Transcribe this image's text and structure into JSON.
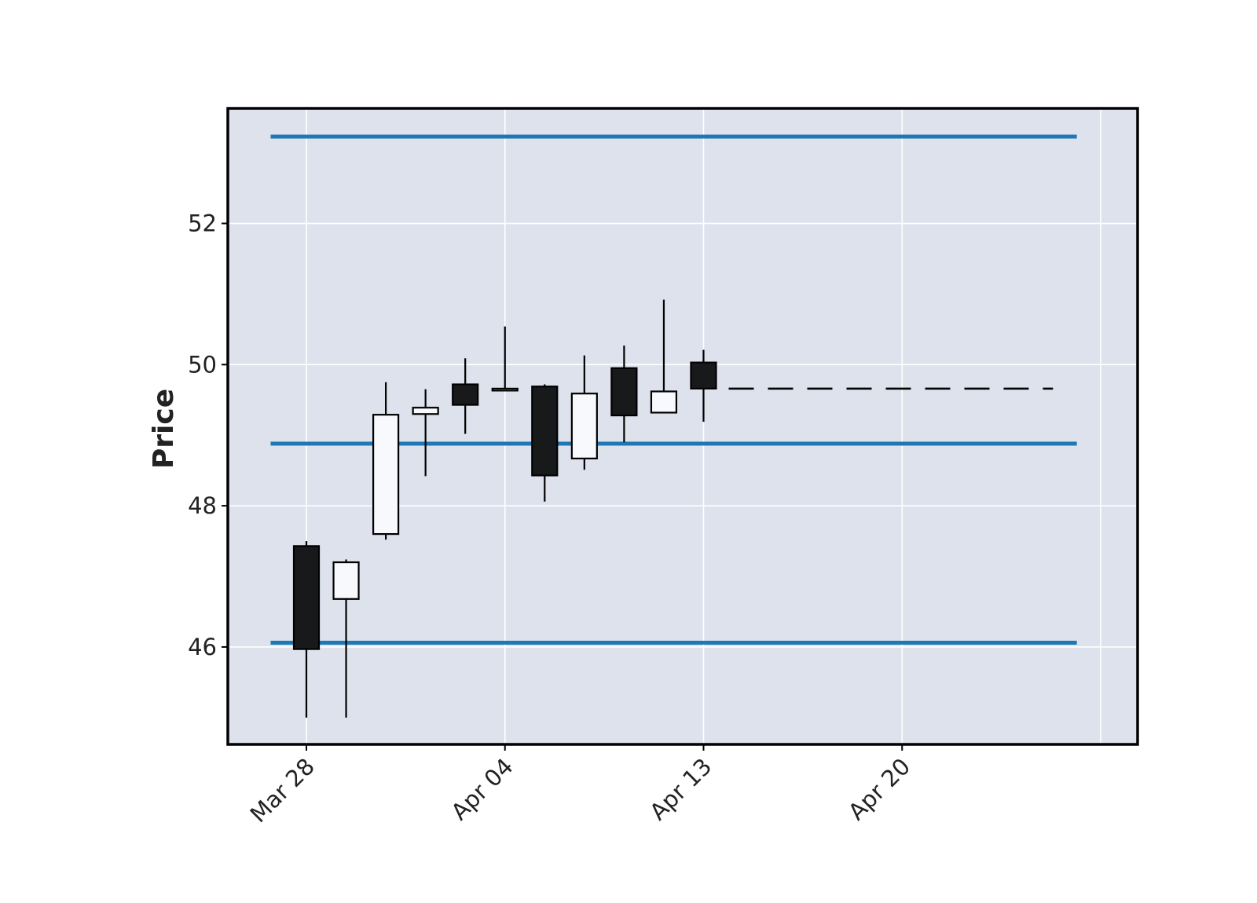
{
  "chart_data": {
    "type": "candlestick",
    "title": "",
    "xlabel": "",
    "ylabel": "Price",
    "ylim": [
      44.62,
      53.63
    ],
    "grid": true,
    "x_tick_labels": [
      "Mar 28",
      "Apr 04",
      "Apr 13",
      "Apr 20"
    ],
    "y_ticks": [
      46,
      48,
      50,
      52
    ],
    "candles": [
      {
        "open": 47.43,
        "high": 47.5,
        "low": 45.0,
        "close": 45.97
      },
      {
        "open": 46.68,
        "high": 47.24,
        "low": 45.0,
        "close": 47.2
      },
      {
        "open": 47.6,
        "high": 49.75,
        "low": 47.52,
        "close": 49.29
      },
      {
        "open": 49.3,
        "high": 49.65,
        "low": 48.42,
        "close": 49.39
      },
      {
        "open": 49.72,
        "high": 50.09,
        "low": 49.02,
        "close": 49.43
      },
      {
        "open": 49.66,
        "high": 50.54,
        "low": 49.66,
        "close": 49.66
      },
      {
        "open": 49.69,
        "high": 49.72,
        "low": 48.06,
        "close": 48.43
      },
      {
        "open": 48.67,
        "high": 50.13,
        "low": 48.51,
        "close": 49.59
      },
      {
        "open": 49.95,
        "high": 50.27,
        "low": 48.9,
        "close": 49.28
      },
      {
        "open": 49.32,
        "high": 50.92,
        "low": 49.32,
        "close": 49.62
      },
      {
        "open": 50.03,
        "high": 50.21,
        "low": 49.19,
        "close": 49.66
      }
    ],
    "horizontal_lines": [
      {
        "value": 53.23,
        "color": "#1f77b4"
      },
      {
        "value": 48.88,
        "color": "#1f77b4"
      },
      {
        "value": 46.06,
        "color": "#1f77b4"
      }
    ],
    "dashed_line": {
      "value": 49.66,
      "color": "#000000"
    },
    "colors": {
      "background": "#dde2ed",
      "up_body": "#f8f9fc",
      "down_body": "#18191b",
      "grid": "#ffffff",
      "frame": "#000000"
    }
  }
}
